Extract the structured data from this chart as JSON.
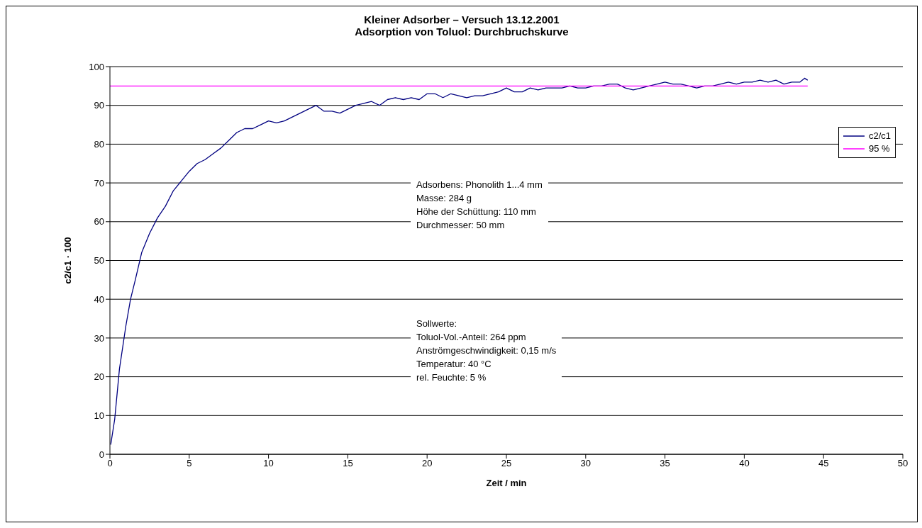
{
  "chart_data": {
    "type": "line",
    "title": "Kleiner Adsorber – Versuch 13.12.2001",
    "subtitle": "Adsorption von Toluol: Durchbruchskurve",
    "xlabel": "Zeit / min",
    "ylabel": "c2/c1 · 100",
    "xlim": [
      0,
      50
    ],
    "xticks": [
      0,
      5,
      10,
      15,
      20,
      25,
      30,
      35,
      40,
      45,
      50
    ],
    "ylim": [
      0,
      100
    ],
    "yticks": [
      0,
      10,
      20,
      30,
      40,
      50,
      60,
      70,
      80,
      90,
      100
    ],
    "grid": "y",
    "legend": "right",
    "marker": "none",
    "line_style": "solid",
    "series": [
      {
        "name": "c2/c1",
        "color": "#000080",
        "x": [
          0.05,
          0.3,
          0.6,
          1.0,
          1.3,
          1.6,
          2.0,
          2.5,
          3.0,
          3.5,
          4.0,
          4.5,
          5.0,
          5.5,
          6.0,
          6.5,
          7.0,
          7.5,
          8.0,
          8.5,
          9.0,
          9.5,
          10.0,
          10.5,
          11.0,
          11.5,
          12.0,
          12.5,
          13.0,
          13.5,
          14.0,
          14.5,
          15.0,
          15.5,
          16.0,
          16.5,
          17.0,
          17.5,
          18.0,
          18.5,
          19.0,
          19.5,
          20.0,
          20.5,
          21.0,
          21.5,
          22.0,
          22.5,
          23.0,
          23.5,
          24.0,
          24.5,
          25.0,
          25.5,
          26.0,
          26.5,
          27.0,
          27.5,
          28.0,
          28.5,
          29.0,
          29.5,
          30.0,
          30.5,
          31.0,
          31.5,
          32.0,
          32.5,
          33.0,
          33.5,
          34.0,
          34.5,
          35.0,
          35.5,
          36.0,
          36.5,
          37.0,
          37.5,
          38.0,
          38.5,
          39.0,
          39.5,
          40.0,
          40.5,
          41.0,
          41.5,
          42.0,
          42.5,
          43.0,
          43.5,
          43.8,
          44.0
        ],
        "values": [
          2.5,
          9,
          22,
          33,
          40,
          45,
          52,
          57,
          61,
          64,
          68,
          70.5,
          73,
          75,
          76,
          77.5,
          79,
          81,
          83,
          84,
          84,
          85,
          86,
          85.5,
          86,
          87,
          88,
          89,
          90,
          88.5,
          88.5,
          88,
          89,
          90,
          90.5,
          91,
          90,
          91.5,
          92,
          91.5,
          92,
          91.5,
          93,
          93,
          92,
          93,
          92.5,
          92,
          92.5,
          92.5,
          93,
          93.5,
          94.5,
          93.5,
          93.5,
          94.5,
          94,
          94.5,
          94.5,
          94.5,
          95,
          94.5,
          94.5,
          95,
          95,
          95.5,
          95.5,
          94.5,
          94,
          94.5,
          95,
          95.5,
          96,
          95.5,
          95.5,
          95,
          94.5,
          95,
          95,
          95.5,
          96,
          95.5,
          96,
          96,
          96.5,
          96,
          96.5,
          95.5,
          96,
          96,
          97,
          96.5
        ]
      },
      {
        "name": "95 %",
        "color": "#ff00ff",
        "x": [
          0,
          44
        ],
        "values": [
          95,
          95
        ]
      }
    ],
    "annotations": [
      "Adsorbens: Phonolith 1...4 mm\nMasse: 284 g\nHöhe der Schüttung: 110 mm\nDurchmesser: 50 mm",
      "Sollwerte:\nToluol-Vol.-Anteil: 264 ppm\nAnströmgeschwindigkeit: 0,15 m/s\nTemperatur: 40 °C\nrel. Feuchte: 5 %"
    ]
  }
}
